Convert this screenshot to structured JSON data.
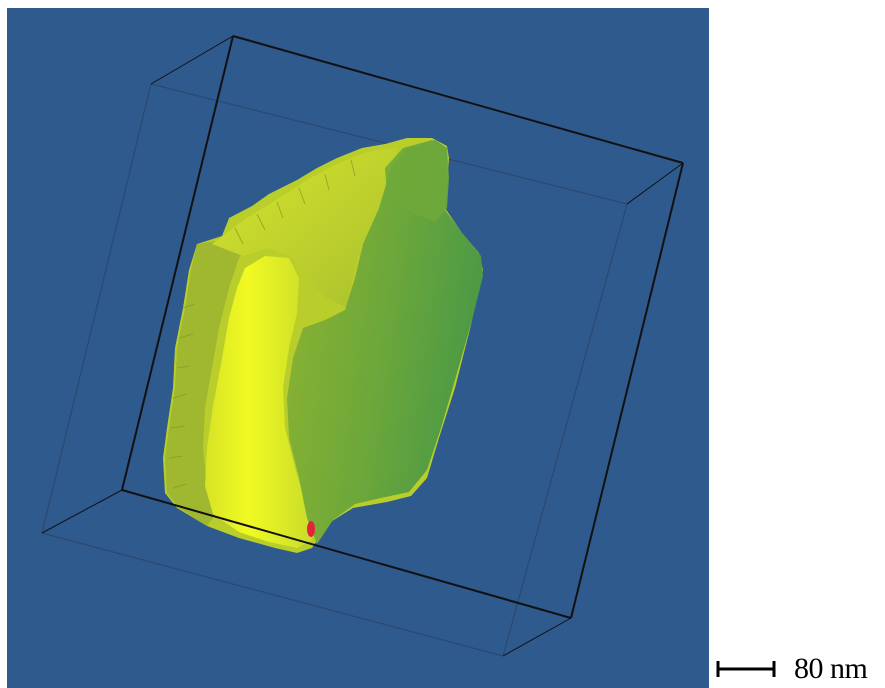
{
  "viewer": {
    "background_color": "#2f5a8e",
    "box_line_color": "#111111",
    "surface_colors": {
      "bright": "#e6f21a",
      "mid": "#a7c62a",
      "shadow": "#5c9a3a",
      "marker": "#e1243a"
    }
  },
  "scale_bar": {
    "label": "80 nm"
  }
}
